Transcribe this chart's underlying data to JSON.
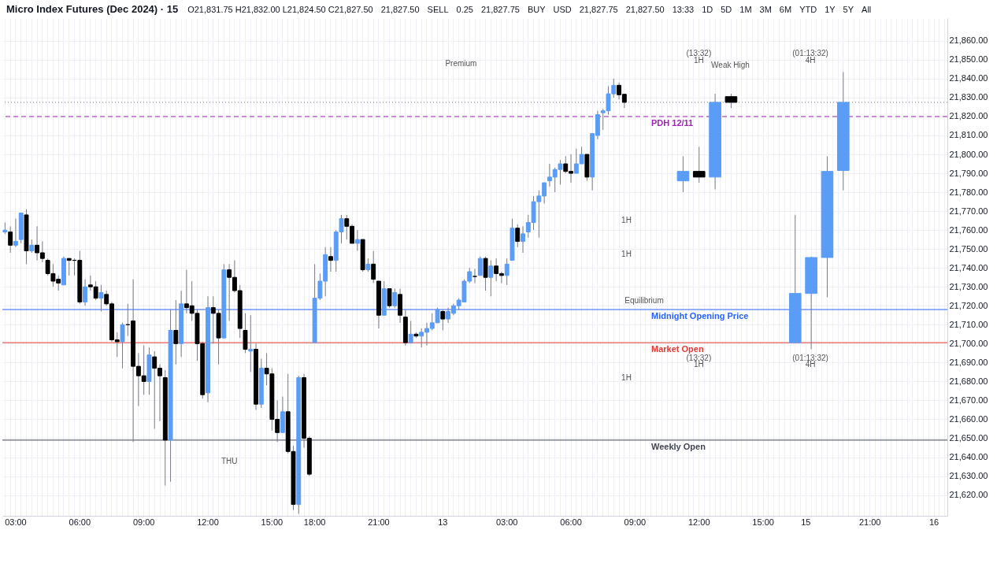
{
  "chart_data": {
    "type": "candlestick",
    "title": "Micro Index Futures (Dec 2024) · 15",
    "categories": [
      null,
      null,
      "03:00",
      null,
      null,
      null,
      null,
      null,
      null,
      null,
      null,
      null,
      null,
      null,
      "06:00",
      null,
      null,
      null,
      null,
      null,
      null,
      null,
      null,
      null,
      null,
      null,
      "09:00",
      null,
      null,
      null,
      null,
      null,
      null,
      null,
      null,
      null,
      null,
      null,
      "12:00",
      null,
      null,
      null,
      null,
      null,
      null,
      null,
      null,
      null,
      null,
      null,
      "15:00",
      null,
      null,
      null,
      null,
      null,
      null,
      null,
      "18:00",
      null,
      null,
      null,
      null,
      null,
      null,
      null,
      null,
      null,
      null,
      null,
      "21:00",
      null,
      null,
      null,
      null,
      null,
      null,
      null,
      null,
      null,
      null,
      null,
      "13",
      null,
      null,
      null,
      null,
      null,
      null,
      null,
      null,
      null,
      null,
      null,
      "03:00",
      null,
      null,
      null,
      null,
      null,
      null,
      null,
      null,
      null,
      null,
      null,
      "06:00",
      null,
      null,
      null,
      null,
      null,
      null,
      null,
      null,
      null,
      null,
      null,
      "09:00",
      null,
      null,
      null,
      null,
      null,
      null,
      null,
      null,
      null,
      null,
      null,
      "12:00",
      null,
      null,
      null,
      null,
      null,
      null,
      null,
      null,
      null,
      null,
      null,
      "15:00",
      null,
      null,
      null,
      null,
      null,
      null,
      null,
      "15",
      null,
      null,
      null,
      null,
      null,
      null,
      null,
      null,
      null,
      null,
      null,
      "21:00",
      null,
      null,
      null,
      null,
      null,
      null,
      null,
      null,
      null,
      null,
      null,
      "16",
      null,
      null
    ],
    "ohlc": [
      [
        21759,
        21764,
        21758,
        21760
      ],
      [
        21759,
        21762,
        21748,
        21752
      ],
      [
        21752,
        21766,
        21751,
        21754
      ],
      [
        21755,
        21769,
        21753,
        21769
      ],
      [
        21768,
        21771,
        21742,
        21749
      ],
      [
        21749,
        21755,
        21748,
        21752
      ],
      [
        21752,
        21762,
        21744,
        21748
      ],
      [
        21748,
        21754,
        21743,
        21745
      ],
      [
        21744,
        21745,
        21736,
        21737
      ],
      [
        21737,
        21742,
        21730,
        21733
      ],
      [
        21734,
        21736,
        21728,
        21732
      ],
      [
        21731,
        21746,
        21731,
        21745
      ],
      [
        21745,
        21745,
        21736,
        21744
      ],
      [
        21744,
        21745,
        21736,
        21744
      ],
      [
        21744,
        21749,
        21721,
        21722
      ],
      [
        21722,
        21734,
        21720,
        21730
      ],
      [
        21731,
        21736,
        21728,
        21730
      ],
      [
        21730,
        21733,
        21723,
        21724
      ],
      [
        21724,
        21731,
        21717,
        21727
      ],
      [
        21726,
        21728,
        21720,
        21721
      ],
      [
        21721,
        21722,
        21701,
        21702
      ],
      [
        21702,
        21706,
        21693,
        21701
      ],
      [
        21701,
        21711,
        21687,
        21710
      ],
      [
        21710,
        21721,
        21704,
        21710
      ],
      [
        21712,
        21734,
        21648,
        21688
      ],
      [
        21688,
        21695,
        21667,
        21683
      ],
      [
        21683,
        21699,
        21673,
        21680
      ],
      [
        21680,
        21698,
        21673,
        21694
      ],
      [
        21693,
        21696,
        21655,
        21687
      ],
      [
        21687,
        21689,
        21659,
        21683
      ],
      [
        21682,
        21686,
        21625,
        21649
      ],
      [
        21649,
        21718,
        21627,
        21707
      ],
      [
        21707,
        21723,
        21689,
        21700
      ],
      [
        21700,
        21728,
        21693,
        21721
      ],
      [
        21721,
        21739,
        21716,
        21719
      ],
      [
        21720,
        21733,
        21712,
        21716
      ],
      [
        21716,
        21718,
        21691,
        21700
      ],
      [
        21700,
        21701,
        21671,
        21673
      ],
      [
        21674,
        21725,
        21669,
        21719
      ],
      [
        21719,
        21725,
        21700,
        21716
      ],
      [
        21716,
        21718,
        21689,
        21703
      ],
      [
        21703,
        21742,
        21703,
        21739
      ],
      [
        21739,
        21742,
        21712,
        21735
      ],
      [
        21735,
        21744,
        21727,
        21728
      ],
      [
        21728,
        21731,
        21703,
        21708
      ],
      [
        21707,
        21716,
        21695,
        21697
      ],
      [
        21696,
        21715,
        21685,
        21697
      ],
      [
        21697,
        21700,
        21665,
        21668
      ],
      [
        21668,
        21692,
        21666,
        21687
      ],
      [
        21687,
        21695,
        21678,
        21684
      ],
      [
        21684,
        21687,
        21654,
        21660
      ],
      [
        21660,
        21670,
        21648,
        21653
      ],
      [
        21653,
        21672,
        21653,
        21664
      ],
      [
        21664,
        21684,
        21642,
        21643
      ],
      [
        21643,
        21646,
        21612,
        21615
      ],
      [
        21615,
        21683,
        21610,
        21682
      ],
      [
        21682,
        21684,
        21645,
        21650
      ],
      [
        21650,
        21651,
        21630,
        21631
      ],
      [
        21700.5,
        21742,
        21700.5,
        21724
      ],
      [
        21724,
        21737,
        21723,
        21733
      ],
      [
        21733,
        21751,
        21725,
        21747
      ],
      [
        21746,
        21751,
        21738,
        21744
      ],
      [
        21744,
        21760,
        21738,
        21759
      ],
      [
        21759,
        21768,
        21753,
        21766
      ],
      [
        21766,
        21768,
        21755,
        21762
      ],
      [
        21762,
        21763,
        21753,
        21753
      ],
      [
        21753,
        21760,
        21749,
        21755
      ],
      [
        21755,
        21755,
        21738,
        21739
      ],
      [
        21739,
        21745,
        21738,
        21742
      ],
      [
        21742,
        21749,
        21732,
        21734
      ],
      [
        21733,
        21733,
        21708,
        21715
      ],
      [
        21715,
        21733,
        21715,
        21729
      ],
      [
        21729,
        21729,
        21719,
        21720
      ],
      [
        21720,
        21729,
        21719,
        21727
      ],
      [
        21726,
        21729,
        21711,
        21715
      ],
      [
        21714,
        21718,
        21699,
        21700.5
      ],
      [
        21700.5,
        21712,
        21700,
        21705
      ],
      [
        21705,
        21706,
        21703,
        21704
      ],
      [
        21704,
        21708,
        21698,
        21706
      ],
      [
        21706,
        21711,
        21699,
        21708
      ],
      [
        21708,
        21716,
        21707,
        21711
      ],
      [
        21711,
        21719,
        21711,
        21718
      ],
      [
        21717,
        21718,
        21707,
        21713
      ],
      [
        21713,
        21719,
        21711,
        21717
      ],
      [
        21716,
        21721,
        21715,
        21720
      ],
      [
        21720,
        21724,
        21718,
        21723
      ],
      [
        21722,
        21734,
        21722,
        21733
      ],
      [
        21733,
        21740,
        21732,
        21738
      ],
      [
        21735.5,
        21739.5,
        21732,
        21735.5
      ],
      [
        21736,
        21746,
        21736,
        21745
      ],
      [
        21745,
        21746,
        21728,
        21735
      ],
      [
        21735,
        21744,
        21725,
        21741
      ],
      [
        21741,
        21745,
        21733,
        21737
      ],
      [
        21737,
        21738,
        21732,
        21736
      ],
      [
        21736,
        21745,
        21731,
        21742
      ],
      [
        21744,
        21766,
        21744,
        21761
      ],
      [
        21761,
        21763,
        21751,
        21754
      ],
      [
        21754,
        21762,
        21748,
        21758
      ],
      [
        21759,
        21768,
        21756,
        21764
      ],
      [
        21764,
        21778,
        21760,
        21775
      ],
      [
        21775,
        21781,
        21756,
        21778
      ],
      [
        21778,
        21785,
        21774,
        21785
      ],
      [
        21786,
        21795,
        21783,
        21788
      ],
      [
        21788,
        21793,
        21780,
        21792
      ],
      [
        21792,
        21797,
        21784,
        21795
      ],
      [
        21795,
        21799,
        21790,
        21791
      ],
      [
        21791,
        21800,
        21785,
        21790
      ],
      [
        21790,
        21803,
        21790,
        21795
      ],
      [
        21795,
        21804,
        21795,
        21800
      ],
      [
        21800,
        21800,
        21786,
        21788
      ],
      [
        21788,
        21811,
        21781,
        21811
      ],
      [
        21810,
        21823,
        21808,
        21821
      ],
      [
        21822,
        21824,
        21813,
        21823
      ],
      [
        21823,
        21836,
        21821,
        21832
      ],
      [
        21832,
        21840,
        21830,
        21836.5
      ],
      [
        21836.5,
        21838,
        21829,
        21831.5
      ],
      [
        21831.75,
        21832,
        21824.5,
        21827.5
      ],
      null,
      null,
      null,
      null,
      null,
      null,
      null,
      null,
      null,
      null,
      null,
      null,
      null,
      null,
      null,
      null,
      null,
      null,
      null,
      null,
      null,
      null,
      null,
      null,
      null,
      null,
      null,
      null,
      null,
      null,
      null,
      null,
      null,
      null,
      null,
      null,
      null,
      null,
      null,
      null,
      null,
      null,
      null,
      null,
      null,
      null,
      null,
      null,
      null,
      null,
      null,
      null,
      null,
      null,
      null,
      null,
      null,
      null,
      null,
      null
    ],
    "colors": [
      "#5b9cf6",
      "#000000",
      "#5b9cf6",
      "#5b9cf6",
      "#000000",
      "#5b9cf6",
      "#000000",
      "#000000",
      "#000000",
      "#000000",
      "#000000",
      "#5b9cf6",
      "#000000",
      "#000000",
      "#000000",
      "#5b9cf6",
      "#000000",
      "#000000",
      "#5b9cf6",
      "#000000",
      "#000000",
      "#000000",
      "#5b9cf6",
      "#000000",
      "#000000",
      "#000000",
      "#000000",
      "#5b9cf6",
      "#000000",
      "#000000",
      "#000000",
      "#5b9cf6",
      "#000000",
      "#5b9cf6",
      "#000000",
      "#000000",
      "#000000",
      "#000000",
      "#5b9cf6",
      "#000000",
      "#000000",
      "#5b9cf6",
      "#000000",
      "#000000",
      "#000000",
      "#000000",
      "#5b9cf6",
      "#000000",
      "#5b9cf6",
      "#000000",
      "#000000",
      "#000000",
      "#5b9cf6",
      "#000000",
      "#000000",
      "#5b9cf6",
      "#000000",
      "#000000",
      "#5b9cf6",
      "#5b9cf6",
      "#5b9cf6",
      "#000000",
      "#5b9cf6",
      "#5b9cf6",
      "#000000",
      "#000000",
      "#5b9cf6",
      "#000000",
      "#5b9cf6",
      "#000000",
      "#000000",
      "#5b9cf6",
      "#000000",
      "#5b9cf6",
      "#000000",
      "#000000",
      "#5b9cf6",
      "#000000",
      "#5b9cf6",
      "#5b9cf6",
      "#5b9cf6",
      "#5b9cf6",
      "#000000",
      "#5b9cf6",
      "#5b9cf6",
      "#5b9cf6",
      "#5b9cf6",
      "#5b9cf6",
      "#000000",
      "#5b9cf6",
      "#000000",
      "#5b9cf6",
      "#000000",
      "#000000",
      "#5b9cf6",
      "#5b9cf6",
      "#000000",
      "#5b9cf6",
      "#5b9cf6",
      "#5b9cf6",
      "#5b9cf6",
      "#5b9cf6",
      "#5b9cf6",
      "#5b9cf6",
      "#5b9cf6",
      "#000000",
      "#000000",
      "#5b9cf6",
      "#5b9cf6",
      "#000000",
      "#5b9cf6",
      "#5b9cf6",
      "#5b9cf6",
      "#5b9cf6",
      "#5b9cf6",
      "#000000",
      "#000000",
      null,
      null,
      null,
      null,
      null,
      null,
      null,
      null,
      null,
      null,
      null,
      null,
      null,
      null,
      null,
      null,
      null,
      null,
      null,
      null,
      null,
      null,
      null,
      null,
      null,
      null,
      null,
      null,
      null,
      null,
      null,
      null,
      null,
      null,
      null,
      null,
      null,
      null,
      null,
      null,
      null,
      null,
      null,
      null,
      null,
      null,
      null,
      null,
      null,
      null,
      null,
      null,
      null,
      null,
      null,
      null,
      null,
      null,
      null,
      null
    ],
    "series": [
      {
        "ohlc": [
          null,
          null,
          null,
          null,
          null,
          null,
          null,
          null,
          null,
          null,
          null,
          null,
          null,
          null,
          null,
          null,
          null,
          null,
          null,
          null,
          null,
          null,
          null,
          null,
          null,
          null,
          null,
          null,
          null,
          null,
          null,
          null,
          null,
          null,
          null,
          null,
          null,
          null,
          null,
          null,
          null,
          null,
          null,
          null,
          null,
          null,
          null,
          null,
          null,
          null,
          null,
          null,
          null,
          null,
          null,
          null,
          null,
          null,
          null,
          null,
          null,
          null,
          null,
          null,
          null,
          null,
          null,
          null,
          null,
          null,
          null,
          null,
          null,
          null,
          null,
          null,
          null,
          null,
          null,
          null,
          null,
          null,
          null,
          null,
          null,
          null,
          null,
          null,
          null,
          null,
          null,
          null,
          null,
          null,
          null,
          null,
          null,
          null,
          null,
          null,
          null,
          null,
          null,
          null,
          null,
          null,
          null,
          null,
          null,
          null,
          null,
          null,
          null,
          null,
          null,
          null,
          null,
          null,
          null,
          null,
          null,
          null,
          null,
          null,
          null,
          null,
          null,
          [
            21786,
            21799,
            21780,
            21791
          ],
          null,
          null,
          [
            21791,
            21804,
            21785,
            21788
          ],
          null,
          null,
          [
            21788,
            21832,
            21781.5,
            21827.5
          ],
          null,
          null,
          [
            21830.5,
            21832,
            21824.5,
            21827.5
          ],
          null,
          null,
          null,
          null,
          null,
          null,
          null,
          null,
          null,
          null,
          null,
          null,
          null,
          null,
          null,
          null,
          null,
          null,
          null,
          null,
          null,
          null,
          null,
          null,
          null,
          null,
          null,
          null,
          null,
          null,
          null,
          null,
          null,
          null,
          null,
          null,
          null,
          null,
          null,
          null
        ],
        "colors": [
          null,
          null,
          null,
          null,
          null,
          null,
          null,
          null,
          null,
          null,
          null,
          null,
          null,
          null,
          null,
          null,
          null,
          null,
          null,
          null,
          null,
          null,
          null,
          null,
          null,
          null,
          null,
          null,
          null,
          null,
          null,
          null,
          null,
          null,
          null,
          null,
          null,
          null,
          null,
          null,
          null,
          null,
          null,
          null,
          null,
          null,
          null,
          null,
          null,
          null,
          null,
          null,
          null,
          null,
          null,
          null,
          null,
          null,
          null,
          null,
          null,
          null,
          null,
          null,
          null,
          null,
          null,
          null,
          null,
          null,
          null,
          null,
          null,
          null,
          null,
          null,
          null,
          null,
          null,
          null,
          null,
          null,
          null,
          null,
          null,
          null,
          null,
          null,
          null,
          null,
          null,
          null,
          null,
          null,
          null,
          null,
          null,
          null,
          null,
          null,
          null,
          null,
          null,
          null,
          null,
          null,
          null,
          null,
          null,
          null,
          null,
          null,
          null,
          null,
          null,
          null,
          null,
          null,
          null,
          null,
          null,
          null,
          null,
          null,
          null,
          null,
          null,
          "#5b9cf6",
          null,
          null,
          "#000000",
          null,
          null,
          "#5b9cf6",
          null,
          null,
          "#000000",
          null,
          null,
          null,
          null,
          null,
          null,
          null,
          null,
          null,
          null,
          null,
          null,
          null,
          null,
          null,
          null,
          null,
          null,
          null,
          null,
          null,
          null,
          null,
          null,
          null,
          null,
          null,
          null,
          null,
          null,
          null,
          null,
          null,
          null,
          null,
          null,
          null,
          null,
          null,
          null
        ]
      },
      {
        "ohlc": [
          null,
          null,
          null,
          null,
          null,
          null,
          null,
          null,
          null,
          null,
          null,
          null,
          null,
          null,
          null,
          null,
          null,
          null,
          null,
          null,
          null,
          null,
          null,
          null,
          null,
          null,
          null,
          null,
          null,
          null,
          null,
          null,
          null,
          null,
          null,
          null,
          null,
          null,
          null,
          null,
          null,
          null,
          null,
          null,
          null,
          null,
          null,
          null,
          null,
          null,
          null,
          null,
          null,
          null,
          null,
          null,
          null,
          null,
          null,
          null,
          null,
          null,
          null,
          null,
          null,
          null,
          null,
          null,
          null,
          null,
          null,
          null,
          null,
          null,
          null,
          null,
          null,
          null,
          null,
          null,
          null,
          null,
          null,
          null,
          null,
          null,
          null,
          null,
          null,
          null,
          null,
          null,
          null,
          null,
          null,
          null,
          null,
          null,
          null,
          null,
          null,
          null,
          null,
          null,
          null,
          null,
          null,
          null,
          null,
          null,
          null,
          null,
          null,
          null,
          null,
          null,
          null,
          null,
          null,
          null,
          null,
          null,
          null,
          null,
          null,
          null,
          null,
          null,
          null,
          null,
          null,
          null,
          null,
          null,
          null,
          null,
          null,
          null,
          null,
          null,
          null,
          null,
          null,
          null,
          null,
          null,
          null,
          null,
          [
            21700.5,
            21768,
            21700.5,
            21726.5
          ],
          null,
          null,
          [
            21726.5,
            21746,
            21697,
            21745.5
          ],
          null,
          null,
          [
            21745.5,
            21799,
            21724.5,
            21791
          ],
          null,
          null,
          [
            21791.5,
            21843.5,
            21781,
            21827.5
          ],
          null,
          null,
          null,
          null,
          null,
          null,
          null,
          null,
          null,
          null,
          null,
          null,
          null,
          null,
          null,
          null,
          null,
          null,
          null
        ],
        "color": "#5b9cf6"
      }
    ],
    "grid": true,
    "ylim": [
      21609,
      21872
    ],
    "yticks": [
      {
        "value": 21620,
        "label": "21,620.00"
      },
      {
        "value": 21630,
        "label": "21,630.00"
      },
      {
        "value": 21640,
        "label": "21,640.00"
      },
      {
        "value": 21650,
        "label": "21,650.00"
      },
      {
        "value": 21660,
        "label": "21,660.00"
      },
      {
        "value": 21670,
        "label": "21,670.00"
      },
      {
        "value": 21680,
        "label": "21,680.00"
      },
      {
        "value": 21690,
        "label": "21,690.00"
      },
      {
        "value": 21700,
        "label": "21,700.00"
      },
      {
        "value": 21710,
        "label": "21,710.00"
      },
      {
        "value": 21720,
        "label": "21,720.00"
      },
      {
        "value": 21730,
        "label": "21,730.00"
      },
      {
        "value": 21740,
        "label": "21,740.00"
      },
      {
        "value": 21750,
        "label": "21,750.00"
      },
      {
        "value": 21760,
        "label": "21,760.00"
      },
      {
        "value": 21770,
        "label": "21,770.00"
      },
      {
        "value": 21780,
        "label": "21,780.00"
      },
      {
        "value": 21790,
        "label": "21,790.00"
      },
      {
        "value": 21800,
        "label": "21,800.00"
      },
      {
        "value": 21810,
        "label": "21,810.00"
      },
      {
        "value": 21820,
        "label": "21,820.00"
      },
      {
        "value": 21830,
        "label": "21,830.00"
      },
      {
        "value": 21840,
        "label": "21,840.00"
      },
      {
        "value": 21850,
        "label": "21,850.00"
      },
      {
        "value": 21860,
        "label": "21,860.00"
      }
    ],
    "ref_lines": [
      {
        "axis": "y",
        "value": 21820,
        "label": "PDH 12/11",
        "color": "#9c27b0",
        "line_style": "dashed"
      },
      {
        "axis": "y",
        "value": 21827.5,
        "label": null,
        "color": "#787b86",
        "line_style": "dotted"
      },
      {
        "axis": "y",
        "value": 21718,
        "label": "Midnight Opening Price",
        "color": "#2962ff",
        "line_style": "solid"
      },
      {
        "axis": "y",
        "value": 21700.5,
        "label": "Market Open",
        "color": "#e53935",
        "line_style": "solid"
      },
      {
        "axis": "y",
        "value": 21649,
        "label": "Weekly Open",
        "color": "#434651",
        "line_style": "solid"
      }
    ],
    "annotations": [
      "O21,831.75 H21,832.00 L21,824.50 C21,827.50",
      "21,827.50",
      "SELL",
      "0.25",
      "21,827.75",
      "BUY",
      "USD",
      "21,827.75",
      "21,827.50",
      "13:33",
      "1D",
      "5D",
      "1M",
      "3M",
      "6M",
      "YTD",
      "1Y",
      "5Y",
      "All",
      "Premium",
      "Weak High",
      "1H",
      "(13:32)",
      "4H",
      "(01:13:32)",
      "(13:32)",
      "1H",
      "(01:13:32)",
      "4H",
      "1H",
      "1H",
      "1H",
      "Equilibrium",
      "THU"
    ]
  }
}
